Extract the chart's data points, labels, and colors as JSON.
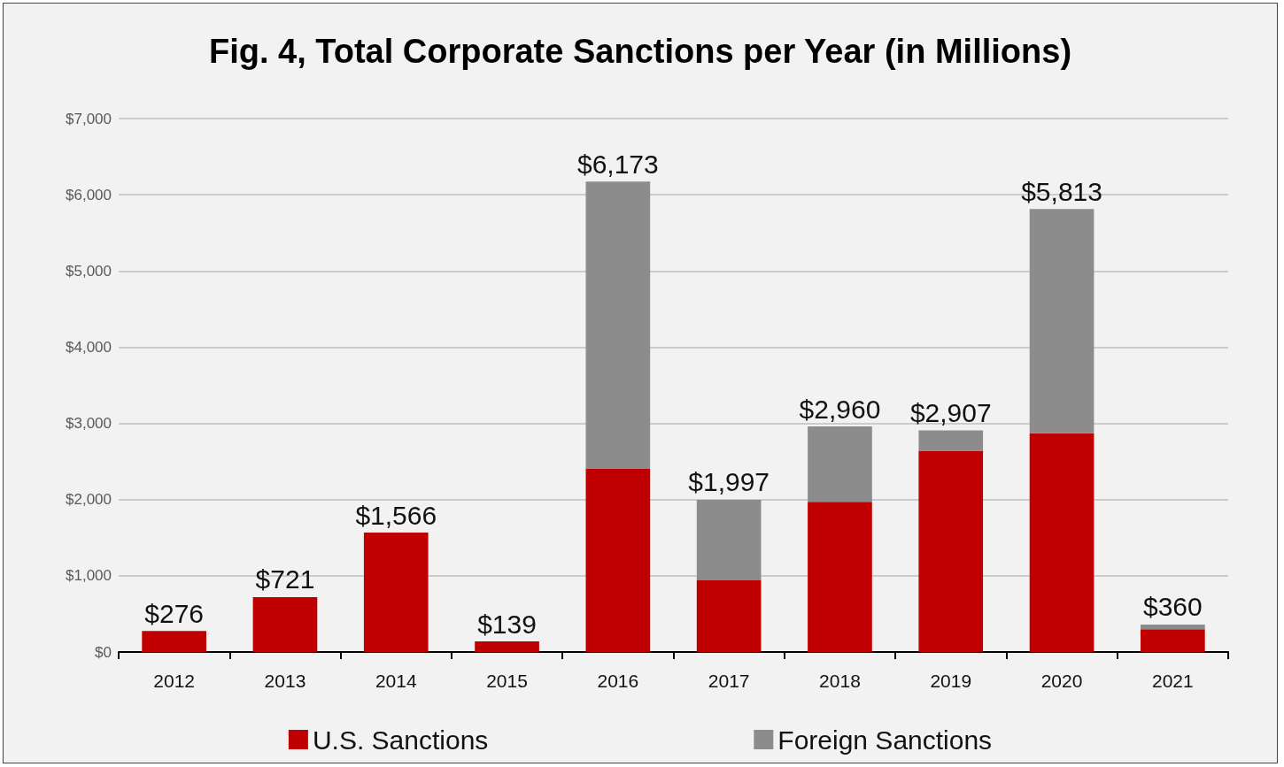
{
  "chart_data": {
    "type": "bar",
    "title": "Fig. 4, Total Corporate Sanctions per Year (in Millions)",
    "categories": [
      "2012",
      "2013",
      "2014",
      "2015",
      "2016",
      "2017",
      "2018",
      "2019",
      "2020",
      "2021"
    ],
    "stacked": true,
    "series": [
      {
        "name": "U.S. Sanctions",
        "color": "#c00000",
        "values": [
          276,
          721,
          1566,
          139,
          2410,
          940,
          1970,
          2640,
          2870,
          300
        ]
      },
      {
        "name": "Foreign Sanctions",
        "color": "#8c8c8c",
        "values": [
          null,
          null,
          null,
          null,
          3763,
          1057,
          990,
          267,
          2943,
          60
        ]
      }
    ],
    "totals": [
      "$276",
      "$721",
      "$1,566",
      "$139",
      "$6,173",
      "$1,997",
      "$2,960",
      "$2,907",
      "$5,813",
      "$360"
    ],
    "ylim": [
      0,
      7000
    ],
    "yticks": [
      {
        "value": 0,
        "label": "$0"
      },
      {
        "value": 1000,
        "label": "$1,000"
      },
      {
        "value": 2000,
        "label": "$2,000"
      },
      {
        "value": 3000,
        "label": "$3,000"
      },
      {
        "value": 4000,
        "label": "$4,000"
      },
      {
        "value": 5000,
        "label": "$5,000"
      },
      {
        "value": 6000,
        "label": "$6,000"
      },
      {
        "value": 7000,
        "label": "$7,000"
      }
    ],
    "grid": "y",
    "legend": "bottom"
  }
}
